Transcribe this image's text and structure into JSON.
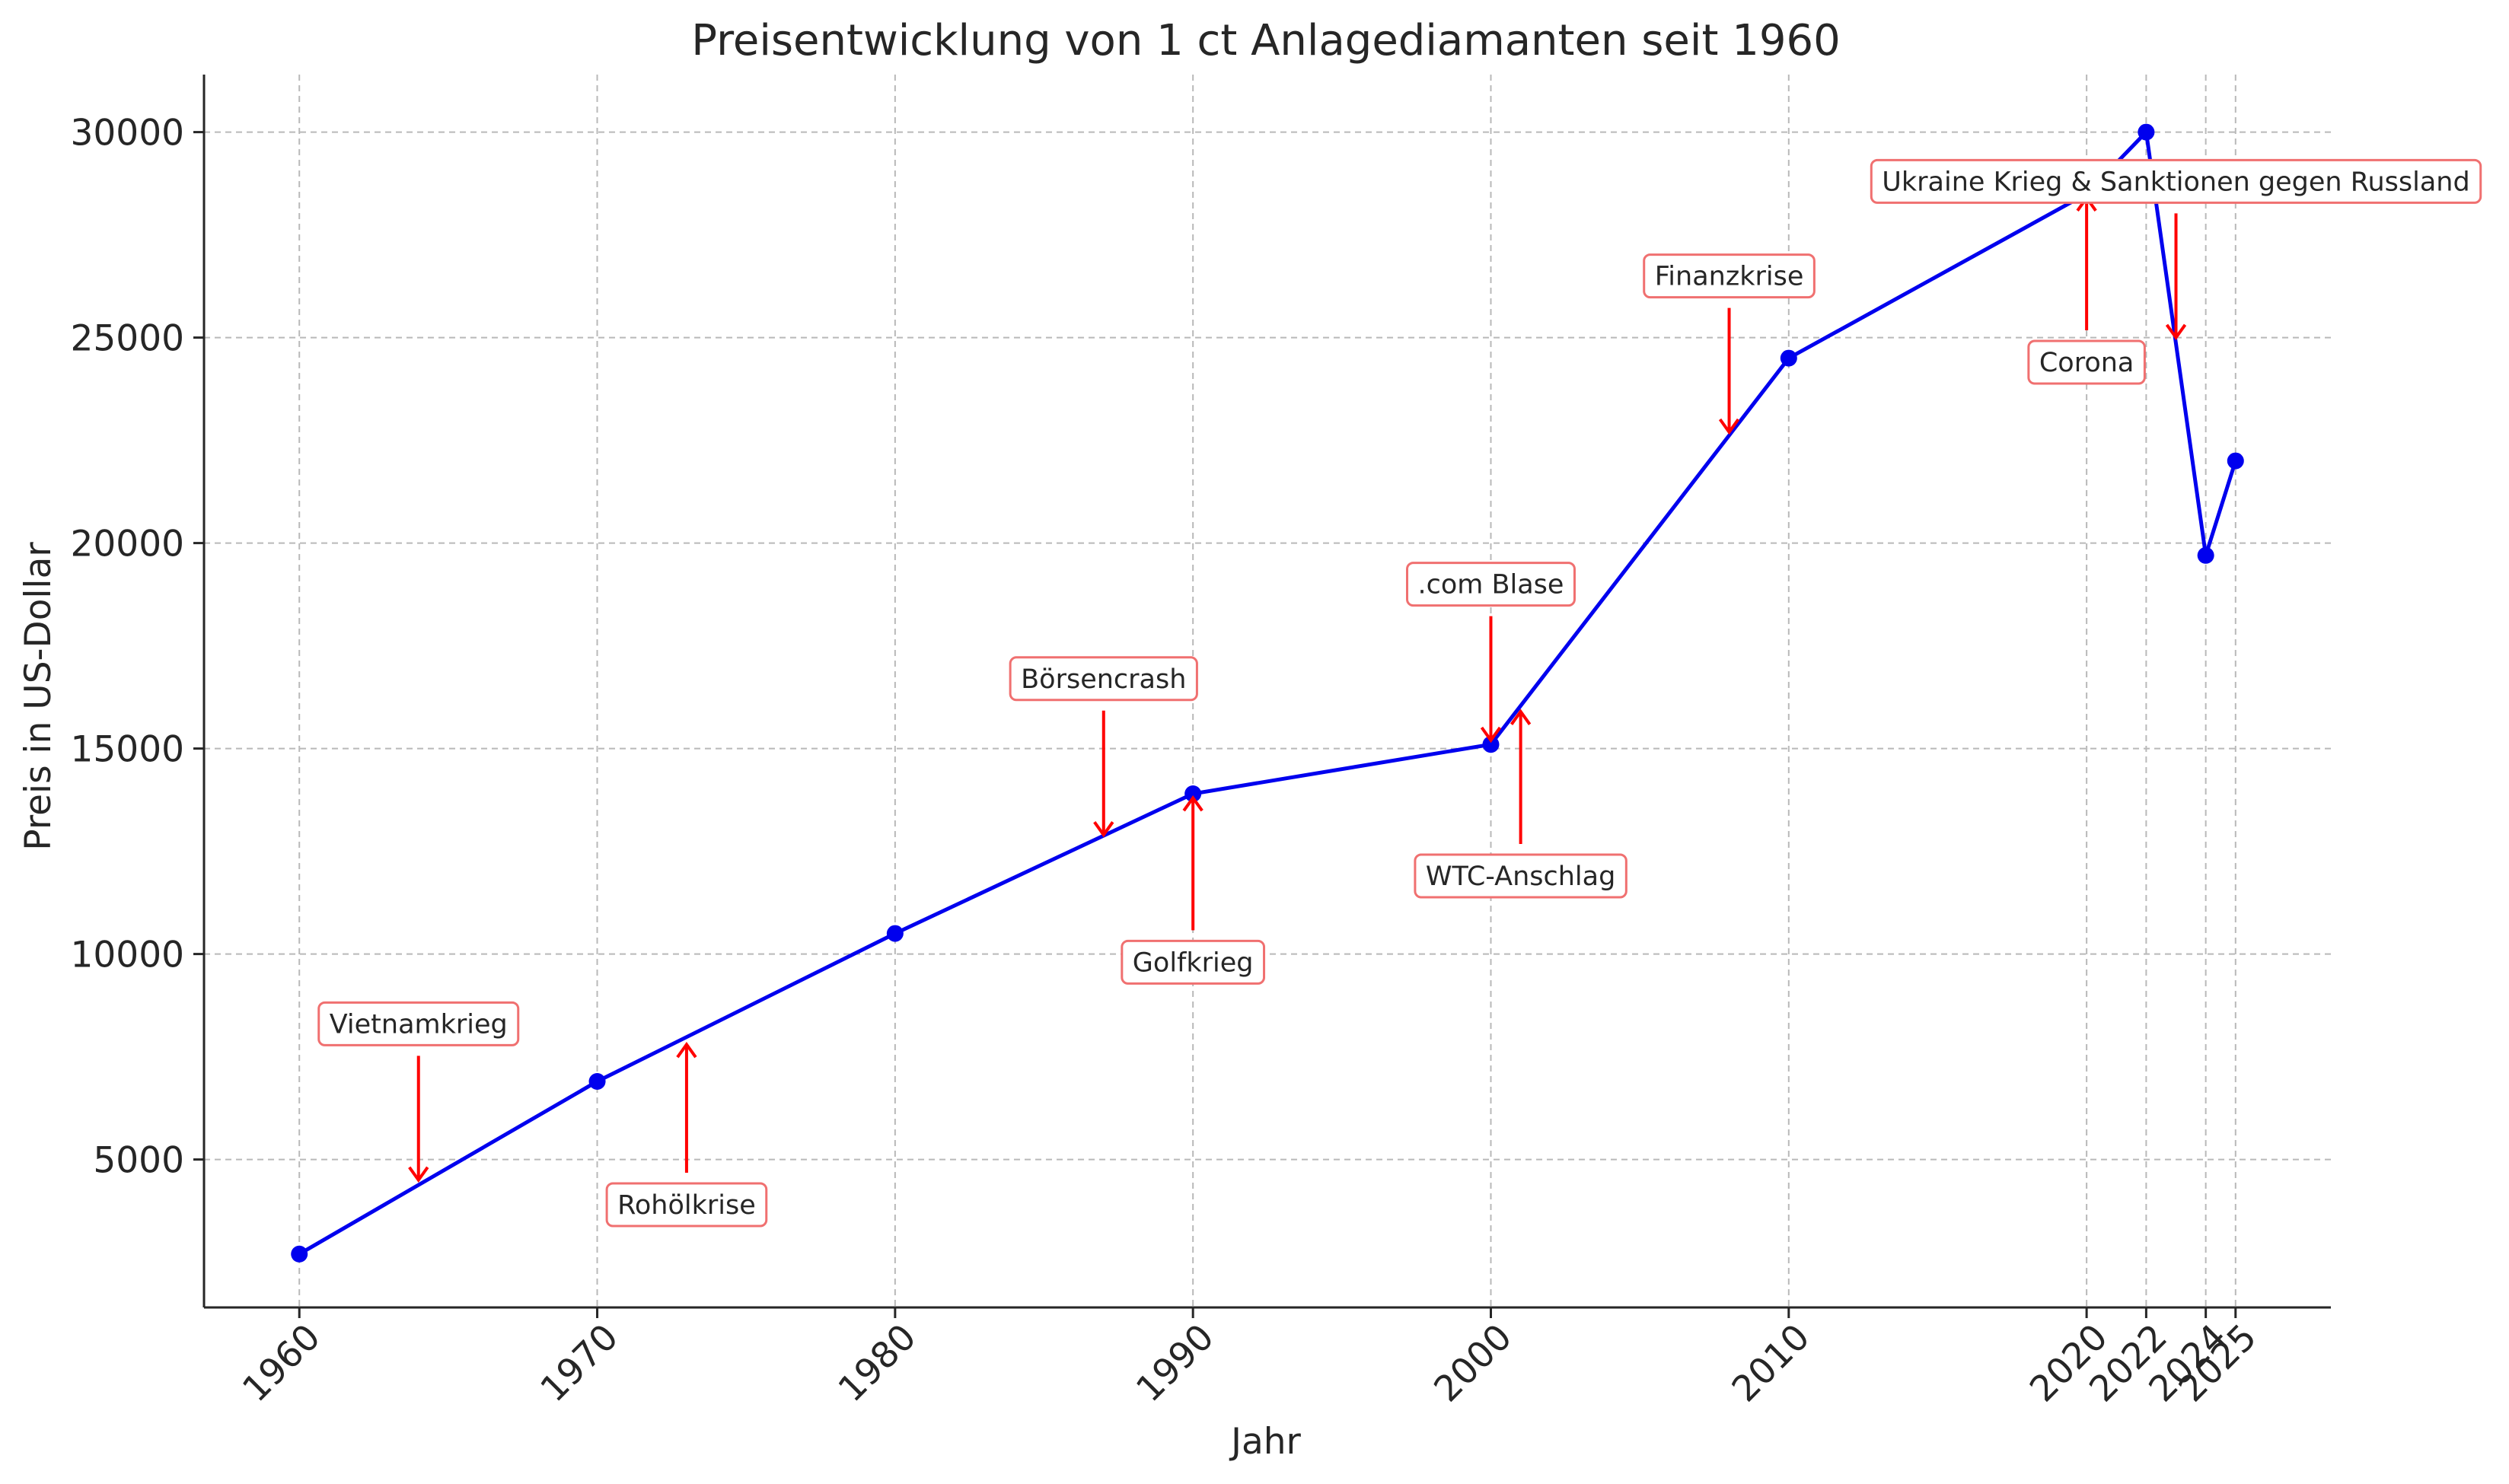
{
  "chart_data": {
    "type": "line",
    "title": "Preisentwicklung von 1 ct Anlagediamanten seit 1960",
    "xlabel": "Jahr",
    "ylabel": "Preis in US-Dollar",
    "xlim": [
      1956.8,
      2028.2
    ],
    "ylim": [
      1400,
      31400
    ],
    "grid": true,
    "colors": {
      "series": "#0000ee",
      "annotation_border": "#f07070",
      "annotation_arrow": "#ff0000"
    },
    "x_ticks": [
      1960,
      1970,
      1980,
      1990,
      2000,
      2010,
      2020,
      2022,
      2024,
      2025
    ],
    "y_ticks": [
      5000,
      10000,
      15000,
      20000,
      25000,
      30000
    ],
    "series": [
      {
        "x": [
          1960,
          1970,
          1980,
          1990,
          2000,
          2010,
          2020,
          2022,
          2024,
          2025
        ],
        "y": [
          2700,
          6900,
          10500,
          13900,
          15100,
          24500,
          28500,
          30000,
          19700,
          22000
        ]
      }
    ],
    "annotations": [
      {
        "text": "Vietnamkrieg",
        "label_x": 1964,
        "label_y": 8300,
        "arrow_x": 1964,
        "arrow_y": 4500
      },
      {
        "text": "Rohölkrise",
        "label_x": 1973,
        "label_y": 3900,
        "arrow_x": 1973,
        "arrow_y": 7800
      },
      {
        "text": "Börsencrash",
        "label_x": 1987,
        "label_y": 16700,
        "arrow_x": 1987,
        "arrow_y": 12900
      },
      {
        "text": "Golfkrieg",
        "label_x": 1990,
        "label_y": 9800,
        "arrow_x": 1990,
        "arrow_y": 13800
      },
      {
        "text": ".com Blase",
        "label_x": 2000,
        "label_y": 19000,
        "arrow_x": 2000,
        "arrow_y": 15200
      },
      {
        "text": "WTC-Anschlag",
        "label_x": 2001,
        "label_y": 11900,
        "arrow_x": 2001,
        "arrow_y": 15900
      },
      {
        "text": "Finanzkrise",
        "label_x": 2008,
        "label_y": 26500,
        "arrow_x": 2008,
        "arrow_y": 22700
      },
      {
        "text": "Corona",
        "label_x": 2020,
        "label_y": 24400,
        "arrow_x": 2020,
        "arrow_y": 28400
      },
      {
        "text": "Ukraine Krieg & Sanktionen gegen Russland",
        "label_x": 2023,
        "label_y": 28800,
        "arrow_x": 2023,
        "arrow_y": 25000
      }
    ]
  }
}
